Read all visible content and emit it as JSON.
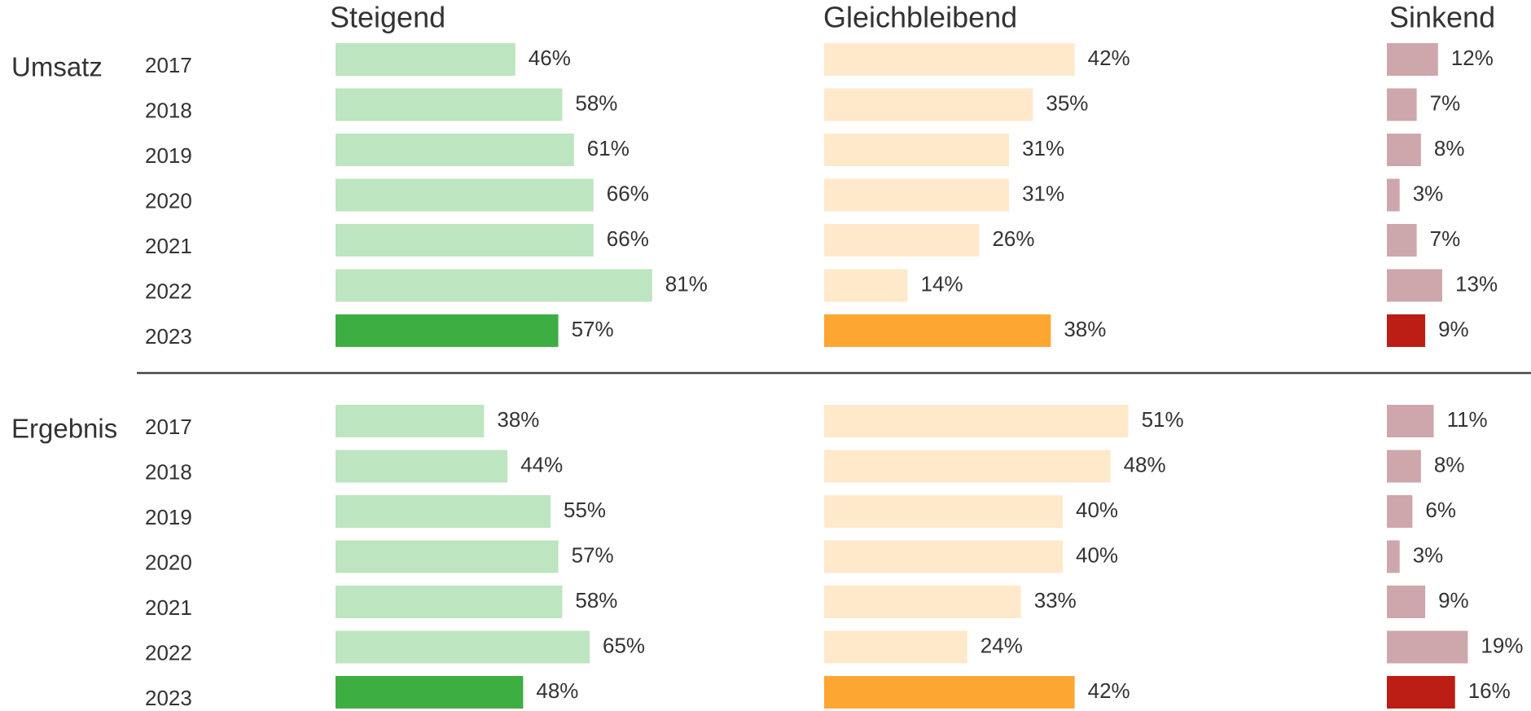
{
  "chart_data": {
    "type": "bar",
    "categories": [
      "2017",
      "2018",
      "2019",
      "2020",
      "2021",
      "2022",
      "2023"
    ],
    "series": [
      {
        "name": "Steigend",
        "color": "#bde5bf",
        "highlight_color": "#3daf42",
        "xlim": [
          0,
          100
        ]
      },
      {
        "name": "Gleichbleibend",
        "color": "#ffe9cb",
        "highlight_color": "#fea632",
        "xlim": [
          0,
          80
        ]
      },
      {
        "name": "Sinkend",
        "color": "#cda7ab",
        "highlight_color": "#bc1d14",
        "xlim": [
          0,
          30
        ]
      }
    ],
    "groups": [
      {
        "name": "Umsatz",
        "values": [
          [
            46,
            58,
            61,
            66,
            66,
            81,
            57
          ],
          [
            42,
            35,
            31,
            31,
            26,
            14,
            38
          ],
          [
            12,
            7,
            8,
            3,
            7,
            13,
            9
          ]
        ],
        "value_labels": [
          [
            "46%",
            "58%",
            "61%",
            "66%",
            "66%",
            "81%",
            "57%"
          ],
          [
            "42%",
            "35%",
            "31%",
            "31%",
            "26%",
            "14%",
            "38%"
          ],
          [
            "12%",
            "7%",
            "8%",
            "3%",
            "7%",
            "13%",
            "9%"
          ]
        ]
      },
      {
        "name": "Ergebnis",
        "values": [
          [
            38,
            44,
            55,
            57,
            58,
            65,
            48
          ],
          [
            51,
            48,
            40,
            40,
            33,
            24,
            42
          ],
          [
            11,
            8,
            6,
            3,
            9,
            19,
            16
          ]
        ],
        "value_labels": [
          [
            "38%",
            "44%",
            "55%",
            "57%",
            "58%",
            "65%",
            "48%"
          ],
          [
            "51%",
            "48%",
            "40%",
            "40%",
            "33%",
            "24%",
            "42%"
          ],
          [
            "11%",
            "8%",
            "6%",
            "3%",
            "9%",
            "19%",
            "16%"
          ]
        ]
      }
    ]
  }
}
